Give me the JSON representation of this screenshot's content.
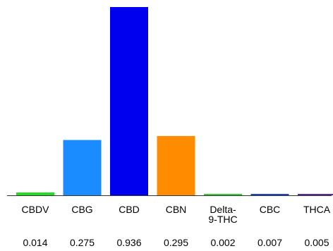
{
  "chart_data": {
    "type": "bar",
    "title": "",
    "xlabel": "",
    "ylabel": "",
    "ylim": [
      0,
      0.936
    ],
    "grid": false,
    "legend": "none",
    "categories": [
      "CBDV",
      "CBG",
      "CBD",
      "CBN",
      "Delta-9-THC",
      "CBC",
      "THCA"
    ],
    "category_lines": [
      [
        "CBDV"
      ],
      [
        "CBG"
      ],
      [
        "CBD"
      ],
      [
        "CBN"
      ],
      [
        "Delta-",
        "9-THC"
      ],
      [
        "CBC"
      ],
      [
        "THCA"
      ]
    ],
    "values": [
      0.014,
      0.275,
      0.936,
      0.295,
      0.002,
      0.007,
      0.005
    ],
    "value_labels": [
      "0.014",
      "0.275",
      "0.936",
      "0.295",
      "0.002",
      "0.007",
      "0.005"
    ],
    "colors": [
      "#22dd22",
      "#1a8cff",
      "#0000ee",
      "#ff8c00",
      "#33cc33",
      "#2244cc",
      "#5a2aa0"
    ]
  }
}
